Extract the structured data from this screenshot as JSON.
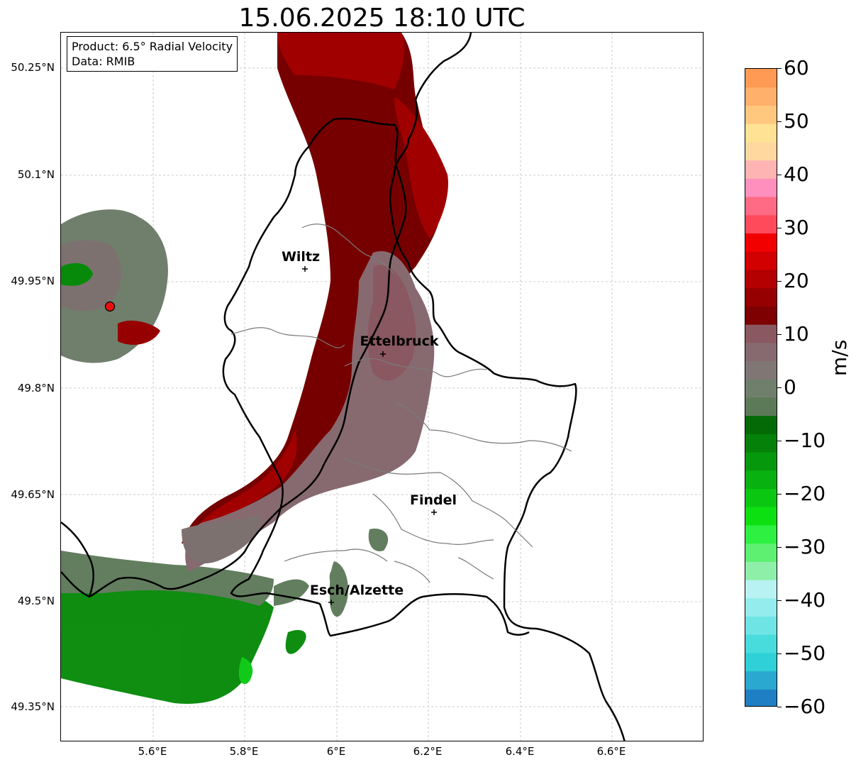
{
  "title": "15.06.2025 18:10 UTC",
  "info": {
    "product": "Product: 6.5° Radial Velocity",
    "data": "Data: RMIB"
  },
  "axes": {
    "lat_ticks": [
      "50.25°N",
      "50.1°N",
      "49.95°N",
      "49.8°N",
      "49.65°N",
      "49.5°N",
      "49.35°N"
    ],
    "lon_ticks": [
      "5.6°E",
      "5.8°E",
      "6°E",
      "6.2°E",
      "6.4°E",
      "6.6°E"
    ],
    "grid": "dashed"
  },
  "cities": [
    {
      "name": "Wiltz"
    },
    {
      "name": "Ettelbruck"
    },
    {
      "name": "Findel"
    },
    {
      "name": "Esch/Alzette"
    }
  ],
  "radar_site": {
    "color": "#e81010"
  },
  "colorbar": {
    "label": "m/s",
    "ticks": [
      "60",
      "50",
      "40",
      "30",
      "20",
      "10",
      "0",
      "−10",
      "−20",
      "−30",
      "−40",
      "−50",
      "−60"
    ],
    "min": -60,
    "max": 60,
    "colors_bottom_to_top": [
      "#1f7fc4",
      "#2aa8d0",
      "#2fd0d8",
      "#48dcdc",
      "#6fe4e4",
      "#94ecec",
      "#b9f2f2",
      "#8ef0a8",
      "#5ef070",
      "#2ef040",
      "#0de010",
      "#0ac812",
      "#08b010",
      "#06980c",
      "#058008",
      "#046a06",
      "#5d7a58",
      "#6f7f6c",
      "#807674",
      "#876a70",
      "#8a5860",
      "#7e0000",
      "#960000",
      "#b40000",
      "#d20000",
      "#f20000",
      "#ff4a5c",
      "#ff6a84",
      "#ff8fbd",
      "#ffb4b4",
      "#ffd8a0",
      "#ffe294",
      "#ffc87e",
      "#ffb06a",
      "#ff9a55"
    ]
  }
}
